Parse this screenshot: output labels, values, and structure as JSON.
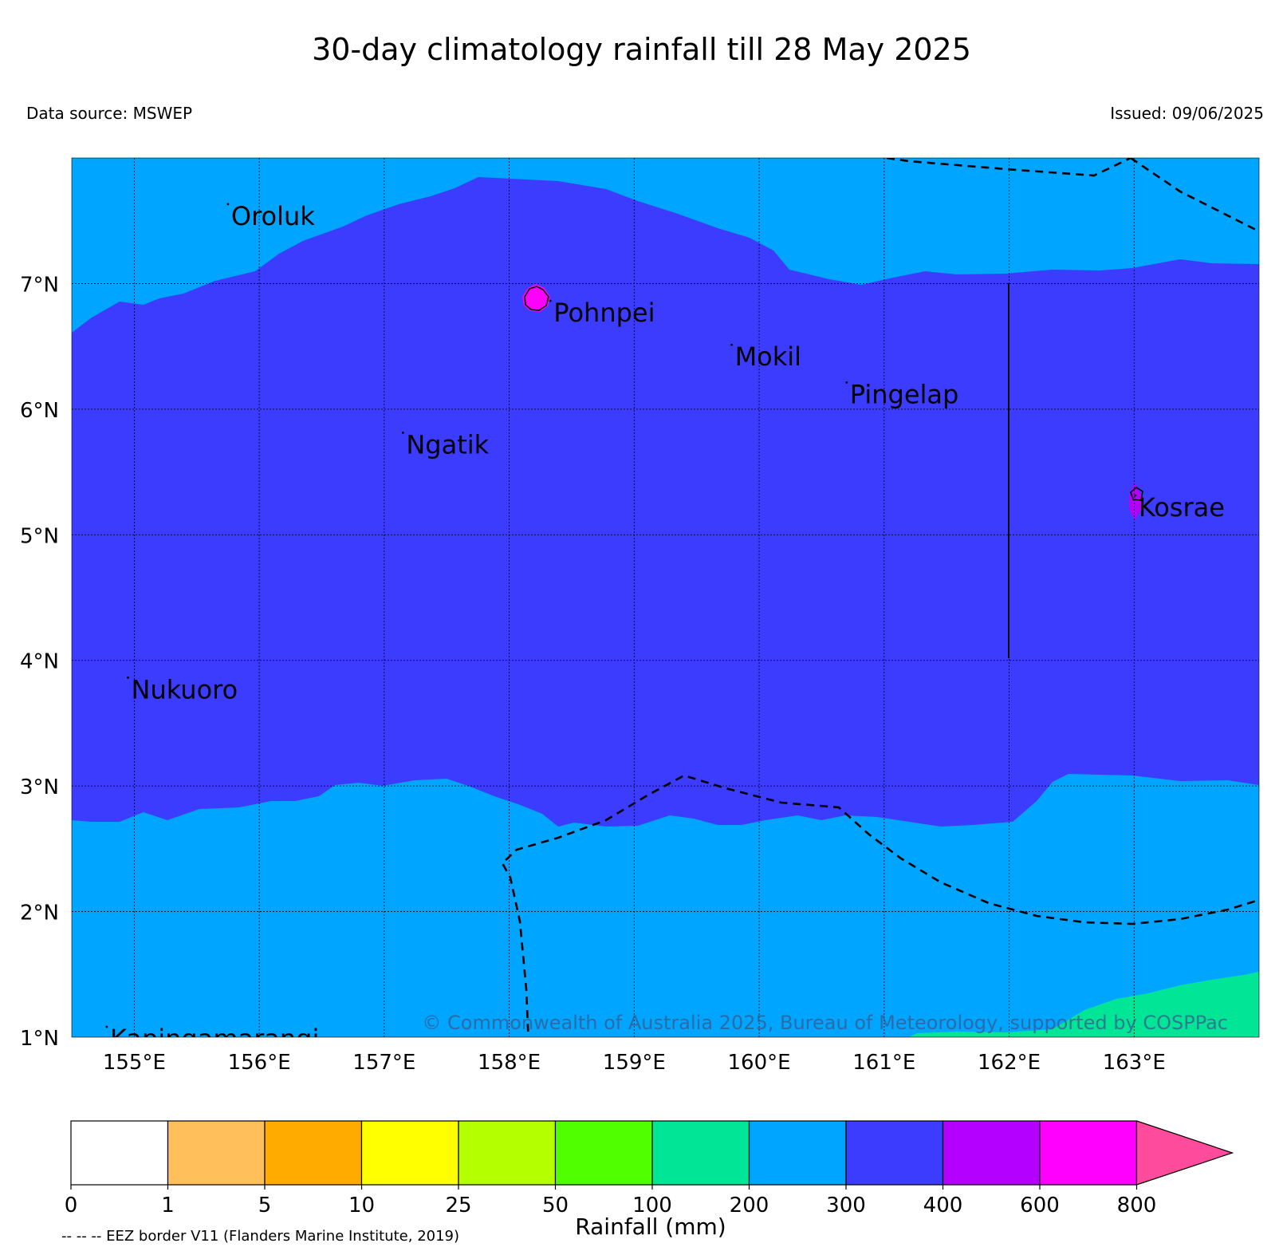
{
  "title": "30-day climatology rainfall till 28 May 2025",
  "data_source": "Data source: MSWEP",
  "issued": "Issued: 09/06/2025",
  "map": {
    "lon_range": [
      154.5,
      164.0
    ],
    "lat_range": [
      1.0,
      8.0
    ],
    "lon_ticks": [
      "155°E",
      "156°E",
      "157°E",
      "158°E",
      "159°E",
      "160°E",
      "161°E",
      "162°E",
      "163°E"
    ],
    "lat_ticks": [
      "1°N",
      "2°N",
      "3°N",
      "4°N",
      "5°N",
      "6°N",
      "7°N"
    ],
    "places": [
      {
        "name": "Oroluk",
        "lon": 155.75,
        "lat": 7.62
      },
      {
        "name": "Pohnpei",
        "lon": 158.33,
        "lat": 6.85
      },
      {
        "name": "Mokil",
        "lon": 159.78,
        "lat": 6.5
      },
      {
        "name": "Pingelap",
        "lon": 160.7,
        "lat": 6.2
      },
      {
        "name": "Ngatik",
        "lon": 157.15,
        "lat": 5.8
      },
      {
        "name": "Kosrae",
        "lon": 163.01,
        "lat": 5.3
      },
      {
        "name": "Nukuoro",
        "lon": 154.95,
        "lat": 3.85
      },
      {
        "name": "Kapingamarangi",
        "lon": 154.78,
        "lat": 1.07
      }
    ],
    "copyright": "© Commonwealth of Australia 2025, Bureau of Meteorology, supported by COSPPac",
    "grid": true
  },
  "colorbar": {
    "ticks": [
      "0",
      "1",
      "5",
      "10",
      "25",
      "50",
      "100",
      "200",
      "300",
      "400",
      "600",
      "800"
    ],
    "colors": [
      "#ffffff",
      "#ffbf5a",
      "#ffab00",
      "#ffff00",
      "#b4ff00",
      "#50ff00",
      "#00e696",
      "#00a5ff",
      "#3c3cff",
      "#b400ff",
      "#ff00ff",
      "#ff4b9b"
    ],
    "label": "Rainfall (mm)",
    "extend": "max"
  },
  "eez_note": "-- -- -- EEZ border V11 (Flanders Marine Institute, 2019)"
}
